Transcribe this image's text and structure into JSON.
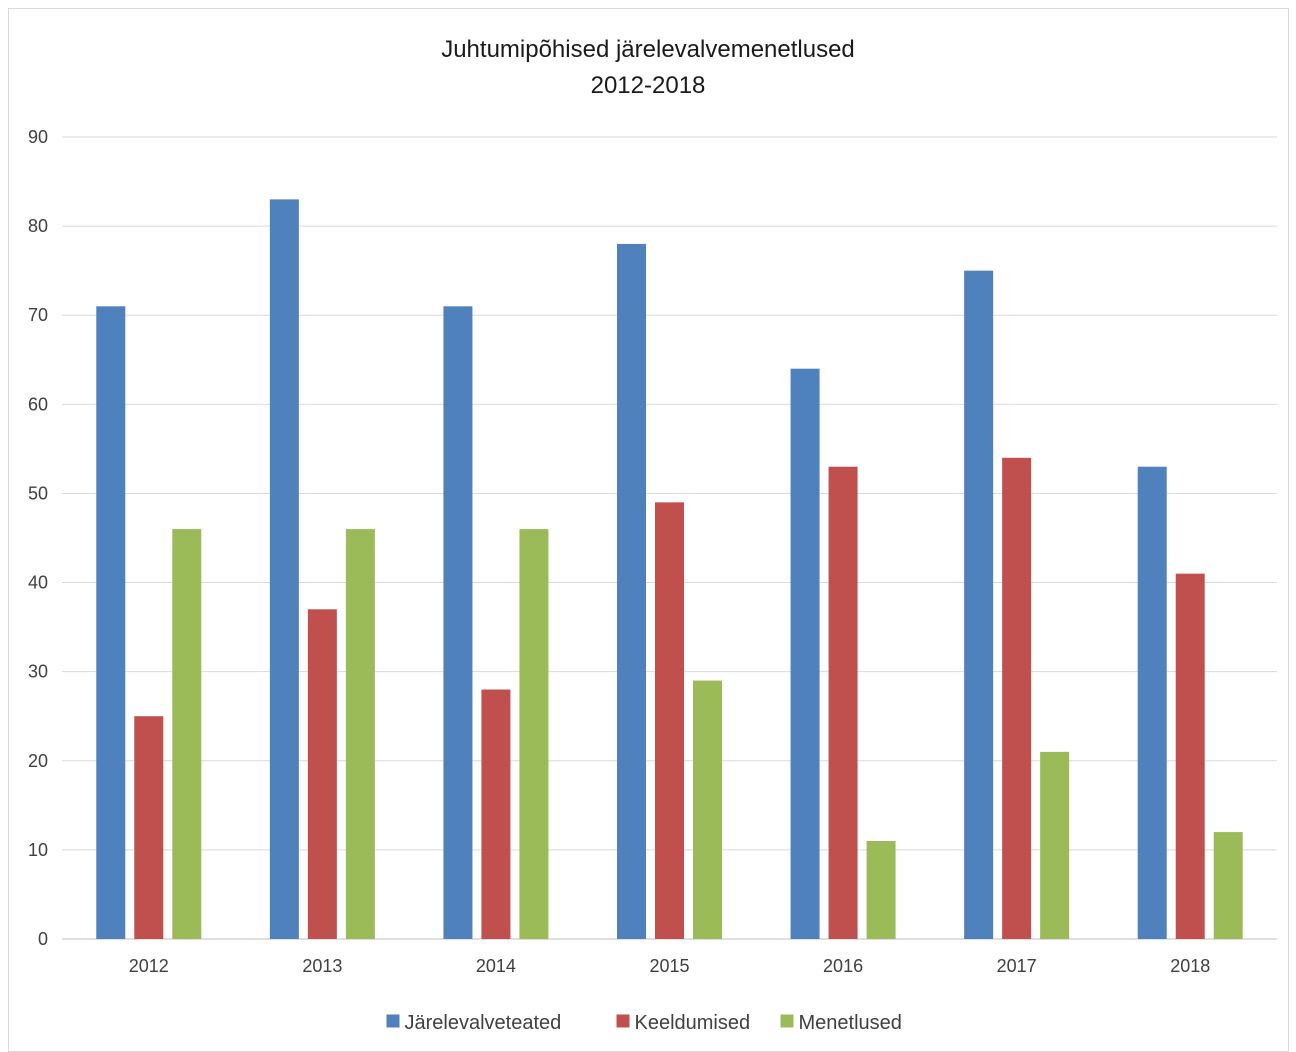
{
  "chart_data": {
    "type": "bar",
    "title": "Juhtumipõhised järelevalvemenetlused",
    "subtitle": "2012-2018",
    "categories": [
      "2012",
      "2013",
      "2014",
      "2015",
      "2016",
      "2017",
      "2018"
    ],
    "series": [
      {
        "name": "Järelevalveteated",
        "color": "#4f81bd",
        "values": [
          71,
          83,
          71,
          78,
          64,
          75,
          53
        ]
      },
      {
        "name": "Keeldumised",
        "color": "#c0504d",
        "values": [
          25,
          37,
          28,
          49,
          53,
          54,
          41
        ]
      },
      {
        "name": "Menetlused",
        "color": "#9bbb59",
        "values": [
          46,
          46,
          46,
          29,
          11,
          21,
          12
        ]
      }
    ],
    "ylim": [
      0,
      90
    ],
    "yticks": [
      0,
      10,
      20,
      30,
      40,
      50,
      60,
      70,
      80,
      90
    ],
    "grid": true,
    "legend_position": "bottom",
    "xlabel": "",
    "ylabel": ""
  }
}
